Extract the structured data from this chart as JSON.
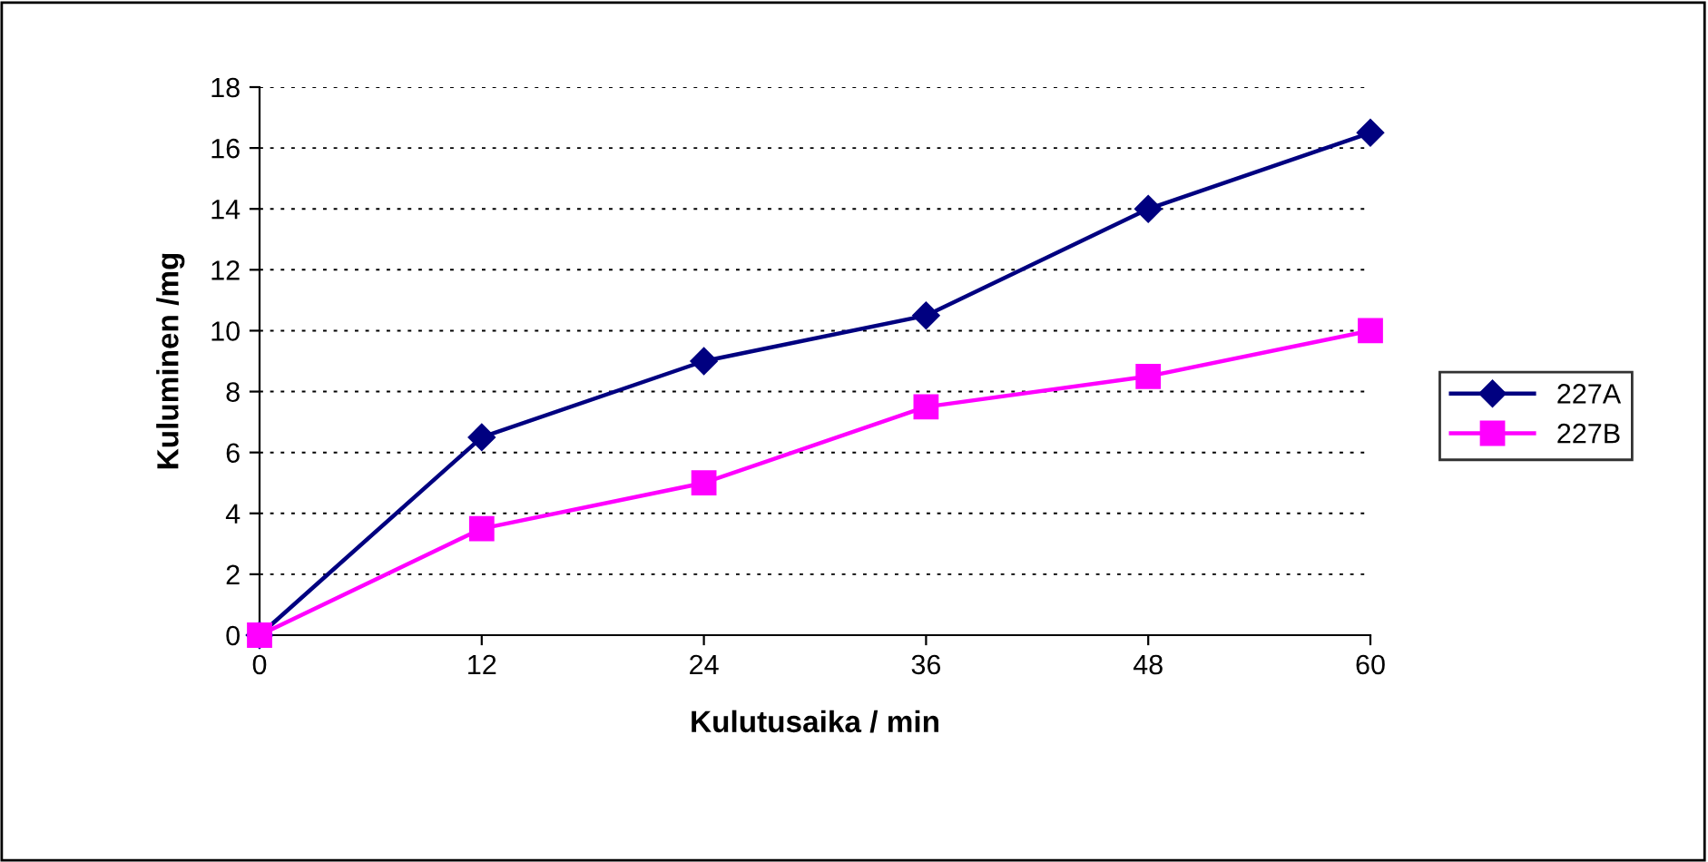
{
  "chart_data": {
    "type": "line",
    "xlabel": "Kulutusaika / min",
    "ylabel": "Kuluminen /mg",
    "x": [
      0,
      12,
      24,
      36,
      48,
      60
    ],
    "series": [
      {
        "name": "227A",
        "color": "#000080",
        "marker": "diamond",
        "values": [
          0,
          6.5,
          9,
          10.5,
          14,
          16.5
        ]
      },
      {
        "name": "227B",
        "color": "#ff00ff",
        "marker": "square",
        "values": [
          0,
          3.5,
          5,
          7.5,
          8.5,
          10
        ]
      }
    ],
    "xlim": [
      0,
      60
    ],
    "xticks": [
      0,
      12,
      24,
      36,
      48,
      60
    ],
    "ylim": [
      0,
      18
    ],
    "yticks": [
      0,
      2,
      4,
      6,
      8,
      10,
      12,
      14,
      16,
      18
    ],
    "grid": "y",
    "legend": "right"
  }
}
